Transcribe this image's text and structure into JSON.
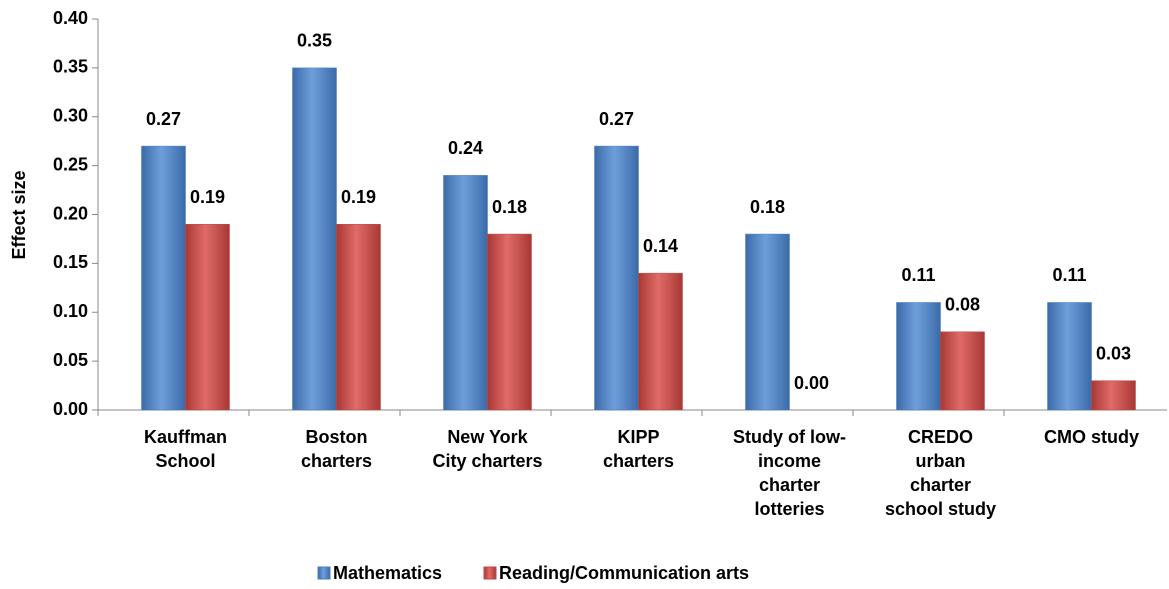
{
  "chart_data": {
    "type": "bar",
    "y_label": "Effect size",
    "categories": [
      [
        "Kauffman",
        "School"
      ],
      [
        "Boston",
        "charters"
      ],
      [
        "New York",
        "City charters"
      ],
      [
        "KIPP",
        "charters"
      ],
      [
        "Study of low-",
        "income",
        "charter",
        "lotteries"
      ],
      [
        "CREDO",
        "urban",
        "charter",
        "school study"
      ],
      [
        "CMO study"
      ]
    ],
    "series": [
      {
        "name": "Mathematics",
        "color": "#4a7ebb",
        "values": [
          0.27,
          0.35,
          0.24,
          0.27,
          0.18,
          0.11,
          0.11
        ],
        "value_labels": [
          "0.27",
          "0.35",
          "0.24",
          "0.27",
          "0.18",
          "0.11",
          "0.11"
        ]
      },
      {
        "name": "Reading/Communication arts",
        "color": "#be4b48",
        "values": [
          0.19,
          0.19,
          0.18,
          0.14,
          0.0,
          0.08,
          0.03
        ],
        "value_labels": [
          "0.19",
          "0.19",
          "0.18",
          "0.14",
          "0.00",
          "0.08",
          "0.03"
        ]
      }
    ],
    "ylim": [
      0,
      0.4
    ],
    "yticks": [
      {
        "value": 0,
        "label": "0.00"
      },
      {
        "value": 0.05,
        "label": "0.05"
      },
      {
        "value": 0.1,
        "label": "0.10"
      },
      {
        "value": 0.15,
        "label": "0.15"
      },
      {
        "value": 0.2,
        "label": "0.20"
      },
      {
        "value": 0.25,
        "label": "0.25"
      },
      {
        "value": 0.3,
        "label": "0.30"
      },
      {
        "value": 0.35,
        "label": "0.35"
      },
      {
        "value": 0.4,
        "label": "0.40"
      }
    ],
    "legend": "bottom"
  }
}
